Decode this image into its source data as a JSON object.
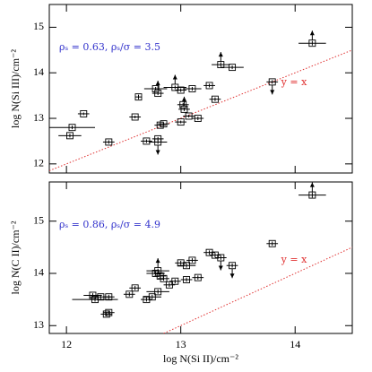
{
  "chart_data": [
    {
      "type": "scatter",
      "ylabel": "log N(Si III)/cm⁻²",
      "annotation": "ρₛ = 0.63, ρₛ/σ = 3.5",
      "line_label": "y = x",
      "xlim": [
        11.85,
        14.5
      ],
      "xticks": [
        12,
        13,
        14
      ],
      "ylim": [
        11.8,
        15.5
      ],
      "yticks": [
        12,
        13,
        14,
        15
      ],
      "color": "#000000",
      "annotation_color": "#3333cc",
      "line_color": "#e03030",
      "x": [
        12.05,
        12.03,
        12.15,
        12.37,
        12.6,
        12.63,
        12.7,
        12.8,
        12.8,
        12.82,
        12.85,
        12.78,
        12.8,
        12.95,
        13.0,
        13.02,
        13.03,
        13.07,
        13.15,
        13.0,
        13.1,
        13.25,
        13.3,
        13.35,
        13.45,
        13.8,
        14.15
      ],
      "values": [
        12.8,
        12.62,
        13.1,
        12.48,
        13.03,
        13.47,
        12.5,
        12.48,
        12.55,
        12.85,
        12.88,
        13.65,
        13.55,
        13.68,
        13.62,
        13.3,
        13.2,
        13.05,
        13.0,
        12.92,
        13.65,
        13.72,
        13.42,
        14.18,
        14.12,
        13.8,
        14.65
      ],
      "xerr": [
        0.2,
        0.1,
        0.05,
        0.05,
        0.05,
        0.03,
        0.05,
        0.08,
        0.05,
        0.05,
        0.05,
        0.1,
        0.05,
        0.1,
        0.05,
        0.05,
        0.05,
        0.05,
        0.05,
        0.05,
        0.08,
        0.05,
        0.05,
        0.08,
        0.1,
        0.05,
        0.12
      ],
      "yerr": [
        0.04,
        0.04,
        0.03,
        0.04,
        0.03,
        0.05,
        0.04,
        0.04,
        0.04,
        0.03,
        0.03,
        0.04,
        0.04,
        0.04,
        0.04,
        0.04,
        0.04,
        0.03,
        0.04,
        0.03,
        0.04,
        0.04,
        0.04,
        0.05,
        0.04,
        0.04,
        0.05
      ],
      "limits": [
        null,
        null,
        null,
        null,
        null,
        null,
        null,
        "down",
        null,
        null,
        null,
        null,
        "up",
        "up",
        null,
        null,
        "up",
        null,
        null,
        null,
        null,
        null,
        null,
        "up",
        null,
        "down",
        "up"
      ]
    },
    {
      "type": "scatter",
      "xlabel": "log N(Si II)/cm⁻²",
      "ylabel": "log N(C II)/cm⁻²",
      "annotation": "ρₛ = 0.86, ρₛ/σ = 4.9",
      "line_label": "y = x",
      "xlim": [
        11.85,
        14.5
      ],
      "xticks": [
        12,
        13,
        14
      ],
      "ylim": [
        12.85,
        15.75
      ],
      "yticks": [
        13,
        14,
        15
      ],
      "color": "#000000",
      "annotation_color": "#3333cc",
      "line_color": "#e03030",
      "x": [
        12.23,
        12.25,
        12.3,
        12.37,
        12.37,
        12.35,
        12.55,
        12.6,
        12.7,
        12.75,
        12.8,
        12.78,
        12.82,
        12.85,
        12.9,
        12.8,
        12.95,
        13.0,
        13.05,
        13.1,
        13.15,
        13.25,
        13.3,
        13.35,
        13.45,
        13.8,
        14.15,
        13.05
      ],
      "values": [
        13.58,
        13.5,
        13.55,
        13.55,
        13.25,
        13.22,
        13.6,
        13.72,
        13.5,
        13.55,
        14.05,
        14.0,
        13.95,
        13.9,
        13.78,
        13.65,
        13.85,
        14.2,
        14.15,
        14.25,
        13.92,
        14.4,
        14.35,
        14.3,
        14.15,
        14.57,
        15.5,
        13.88
      ],
      "xerr": [
        0.08,
        0.2,
        0.1,
        0.05,
        0.05,
        0.05,
        0.05,
        0.05,
        0.05,
        0.08,
        0.1,
        0.08,
        0.05,
        0.05,
        0.05,
        0.1,
        0.05,
        0.05,
        0.08,
        0.05,
        0.05,
        0.05,
        0.05,
        0.05,
        0.05,
        0.05,
        0.12,
        0.05
      ],
      "yerr": [
        0.04,
        0.04,
        0.04,
        0.04,
        0.04,
        0.04,
        0.04,
        0.04,
        0.04,
        0.04,
        0.04,
        0.04,
        0.04,
        0.04,
        0.04,
        0.04,
        0.04,
        0.04,
        0.04,
        0.04,
        0.04,
        0.04,
        0.04,
        0.04,
        0.04,
        0.04,
        0.05,
        0.04
      ],
      "limits": [
        null,
        null,
        null,
        null,
        null,
        null,
        null,
        null,
        null,
        null,
        "up",
        null,
        null,
        null,
        null,
        null,
        null,
        null,
        null,
        null,
        null,
        null,
        null,
        "down",
        "down",
        null,
        "up",
        null
      ]
    }
  ]
}
